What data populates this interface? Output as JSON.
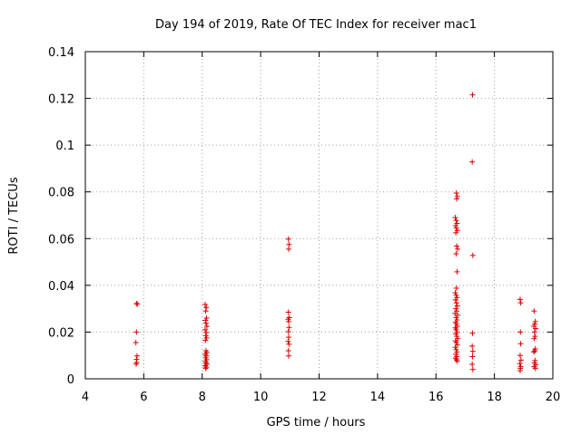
{
  "chart_data": {
    "type": "scatter",
    "title": "Day 194 of 2019, Rate Of TEC Index for receiver mac1",
    "xlabel": "GPS time / hours",
    "ylabel": "ROTI / TECUs",
    "xlim": [
      4,
      20
    ],
    "ylim": [
      0,
      0.14
    ],
    "xticks": [
      4,
      6,
      8,
      10,
      12,
      14,
      16,
      18,
      20
    ],
    "xtick_labels": [
      "4",
      "6",
      "8",
      "10",
      "12",
      "14",
      "16",
      "18",
      "20"
    ],
    "yticks": [
      0,
      0.02,
      0.04,
      0.06,
      0.08,
      0.1,
      0.12,
      0.14
    ],
    "ytick_labels": [
      "0",
      "0.02",
      "0.04",
      "0.06",
      "0.08",
      "0.1",
      "0.12",
      "0.14"
    ],
    "grid": true,
    "marker": "plus",
    "color": "#dd0000",
    "series": [
      {
        "name": "ROTI",
        "points": [
          [
            5.75,
            0.0322
          ],
          [
            5.78,
            0.032
          ],
          [
            5.75,
            0.02
          ],
          [
            5.73,
            0.0155
          ],
          [
            5.77,
            0.0098
          ],
          [
            5.75,
            0.0083
          ],
          [
            5.76,
            0.007
          ],
          [
            5.74,
            0.0063
          ],
          [
            8.1,
            0.0318
          ],
          [
            8.14,
            0.0305
          ],
          [
            8.12,
            0.029
          ],
          [
            8.15,
            0.026
          ],
          [
            8.11,
            0.025
          ],
          [
            8.13,
            0.0238
          ],
          [
            8.16,
            0.0225
          ],
          [
            8.1,
            0.021
          ],
          [
            8.14,
            0.0198
          ],
          [
            8.12,
            0.0185
          ],
          [
            8.15,
            0.0175
          ],
          [
            8.11,
            0.0165
          ],
          [
            8.13,
            0.012
          ],
          [
            8.16,
            0.0112
          ],
          [
            8.1,
            0.0105
          ],
          [
            8.14,
            0.0098
          ],
          [
            8.12,
            0.009
          ],
          [
            8.15,
            0.0082
          ],
          [
            8.11,
            0.0075
          ],
          [
            8.13,
            0.0068
          ],
          [
            8.16,
            0.0062
          ],
          [
            8.1,
            0.0056
          ],
          [
            8.14,
            0.005
          ],
          [
            8.12,
            0.0045
          ],
          [
            10.95,
            0.0598
          ],
          [
            10.97,
            0.0575
          ],
          [
            10.96,
            0.0555
          ],
          [
            10.95,
            0.0285
          ],
          [
            10.98,
            0.0262
          ],
          [
            10.94,
            0.0255
          ],
          [
            10.96,
            0.0245
          ],
          [
            10.97,
            0.022
          ],
          [
            10.95,
            0.0202
          ],
          [
            10.96,
            0.0178
          ],
          [
            10.94,
            0.016
          ],
          [
            10.97,
            0.0148
          ],
          [
            10.95,
            0.012
          ],
          [
            10.96,
            0.0098
          ],
          [
            16.7,
            0.0795
          ],
          [
            16.73,
            0.078
          ],
          [
            16.71,
            0.077
          ],
          [
            16.66,
            0.069
          ],
          [
            16.69,
            0.0678
          ],
          [
            16.72,
            0.0665
          ],
          [
            16.67,
            0.0655
          ],
          [
            16.7,
            0.0645
          ],
          [
            16.73,
            0.0635
          ],
          [
            16.68,
            0.0625
          ],
          [
            16.71,
            0.0568
          ],
          [
            16.74,
            0.0555
          ],
          [
            16.69,
            0.0535
          ],
          [
            16.72,
            0.0458
          ],
          [
            16.7,
            0.0388
          ],
          [
            16.66,
            0.0368
          ],
          [
            16.69,
            0.0358
          ],
          [
            16.72,
            0.0348
          ],
          [
            16.67,
            0.0338
          ],
          [
            16.7,
            0.0325
          ],
          [
            16.73,
            0.0312
          ],
          [
            16.68,
            0.03
          ],
          [
            16.71,
            0.029
          ],
          [
            16.65,
            0.028
          ],
          [
            16.74,
            0.0272
          ],
          [
            16.69,
            0.0262
          ],
          [
            16.72,
            0.0252
          ],
          [
            16.67,
            0.0242
          ],
          [
            16.7,
            0.0235
          ],
          [
            16.73,
            0.0225
          ],
          [
            16.66,
            0.0218
          ],
          [
            16.69,
            0.021
          ],
          [
            16.72,
            0.02
          ],
          [
            16.68,
            0.0192
          ],
          [
            16.71,
            0.0182
          ],
          [
            16.74,
            0.0172
          ],
          [
            16.67,
            0.0162
          ],
          [
            16.7,
            0.0155
          ],
          [
            16.73,
            0.0145
          ],
          [
            16.66,
            0.0135
          ],
          [
            16.69,
            0.0125
          ],
          [
            16.72,
            0.0115
          ],
          [
            16.68,
            0.0105
          ],
          [
            16.71,
            0.0095
          ],
          [
            16.67,
            0.0088
          ],
          [
            16.7,
            0.0082
          ],
          [
            16.73,
            0.0076
          ],
          [
            17.25,
            0.1215
          ],
          [
            17.24,
            0.0928
          ],
          [
            17.26,
            0.0528
          ],
          [
            17.25,
            0.0195
          ],
          [
            17.24,
            0.014
          ],
          [
            17.26,
            0.0118
          ],
          [
            17.25,
            0.0095
          ],
          [
            17.24,
            0.0062
          ],
          [
            17.26,
            0.004
          ],
          [
            18.88,
            0.034
          ],
          [
            18.9,
            0.0325
          ],
          [
            18.89,
            0.02
          ],
          [
            18.9,
            0.015
          ],
          [
            18.88,
            0.01
          ],
          [
            18.91,
            0.008
          ],
          [
            18.87,
            0.0065
          ],
          [
            18.9,
            0.0052
          ],
          [
            18.89,
            0.0045
          ],
          [
            18.88,
            0.0035
          ],
          [
            19.36,
            0.029
          ],
          [
            19.4,
            0.0245
          ],
          [
            19.38,
            0.0235
          ],
          [
            19.35,
            0.0225
          ],
          [
            19.41,
            0.0215
          ],
          [
            19.37,
            0.02
          ],
          [
            19.39,
            0.0182
          ],
          [
            19.36,
            0.0172
          ],
          [
            19.4,
            0.0128
          ],
          [
            19.38,
            0.012
          ],
          [
            19.35,
            0.0115
          ],
          [
            19.39,
            0.0078
          ],
          [
            19.37,
            0.0068
          ],
          [
            19.41,
            0.006
          ],
          [
            19.36,
            0.0052
          ],
          [
            19.4,
            0.0045
          ]
        ]
      }
    ]
  }
}
